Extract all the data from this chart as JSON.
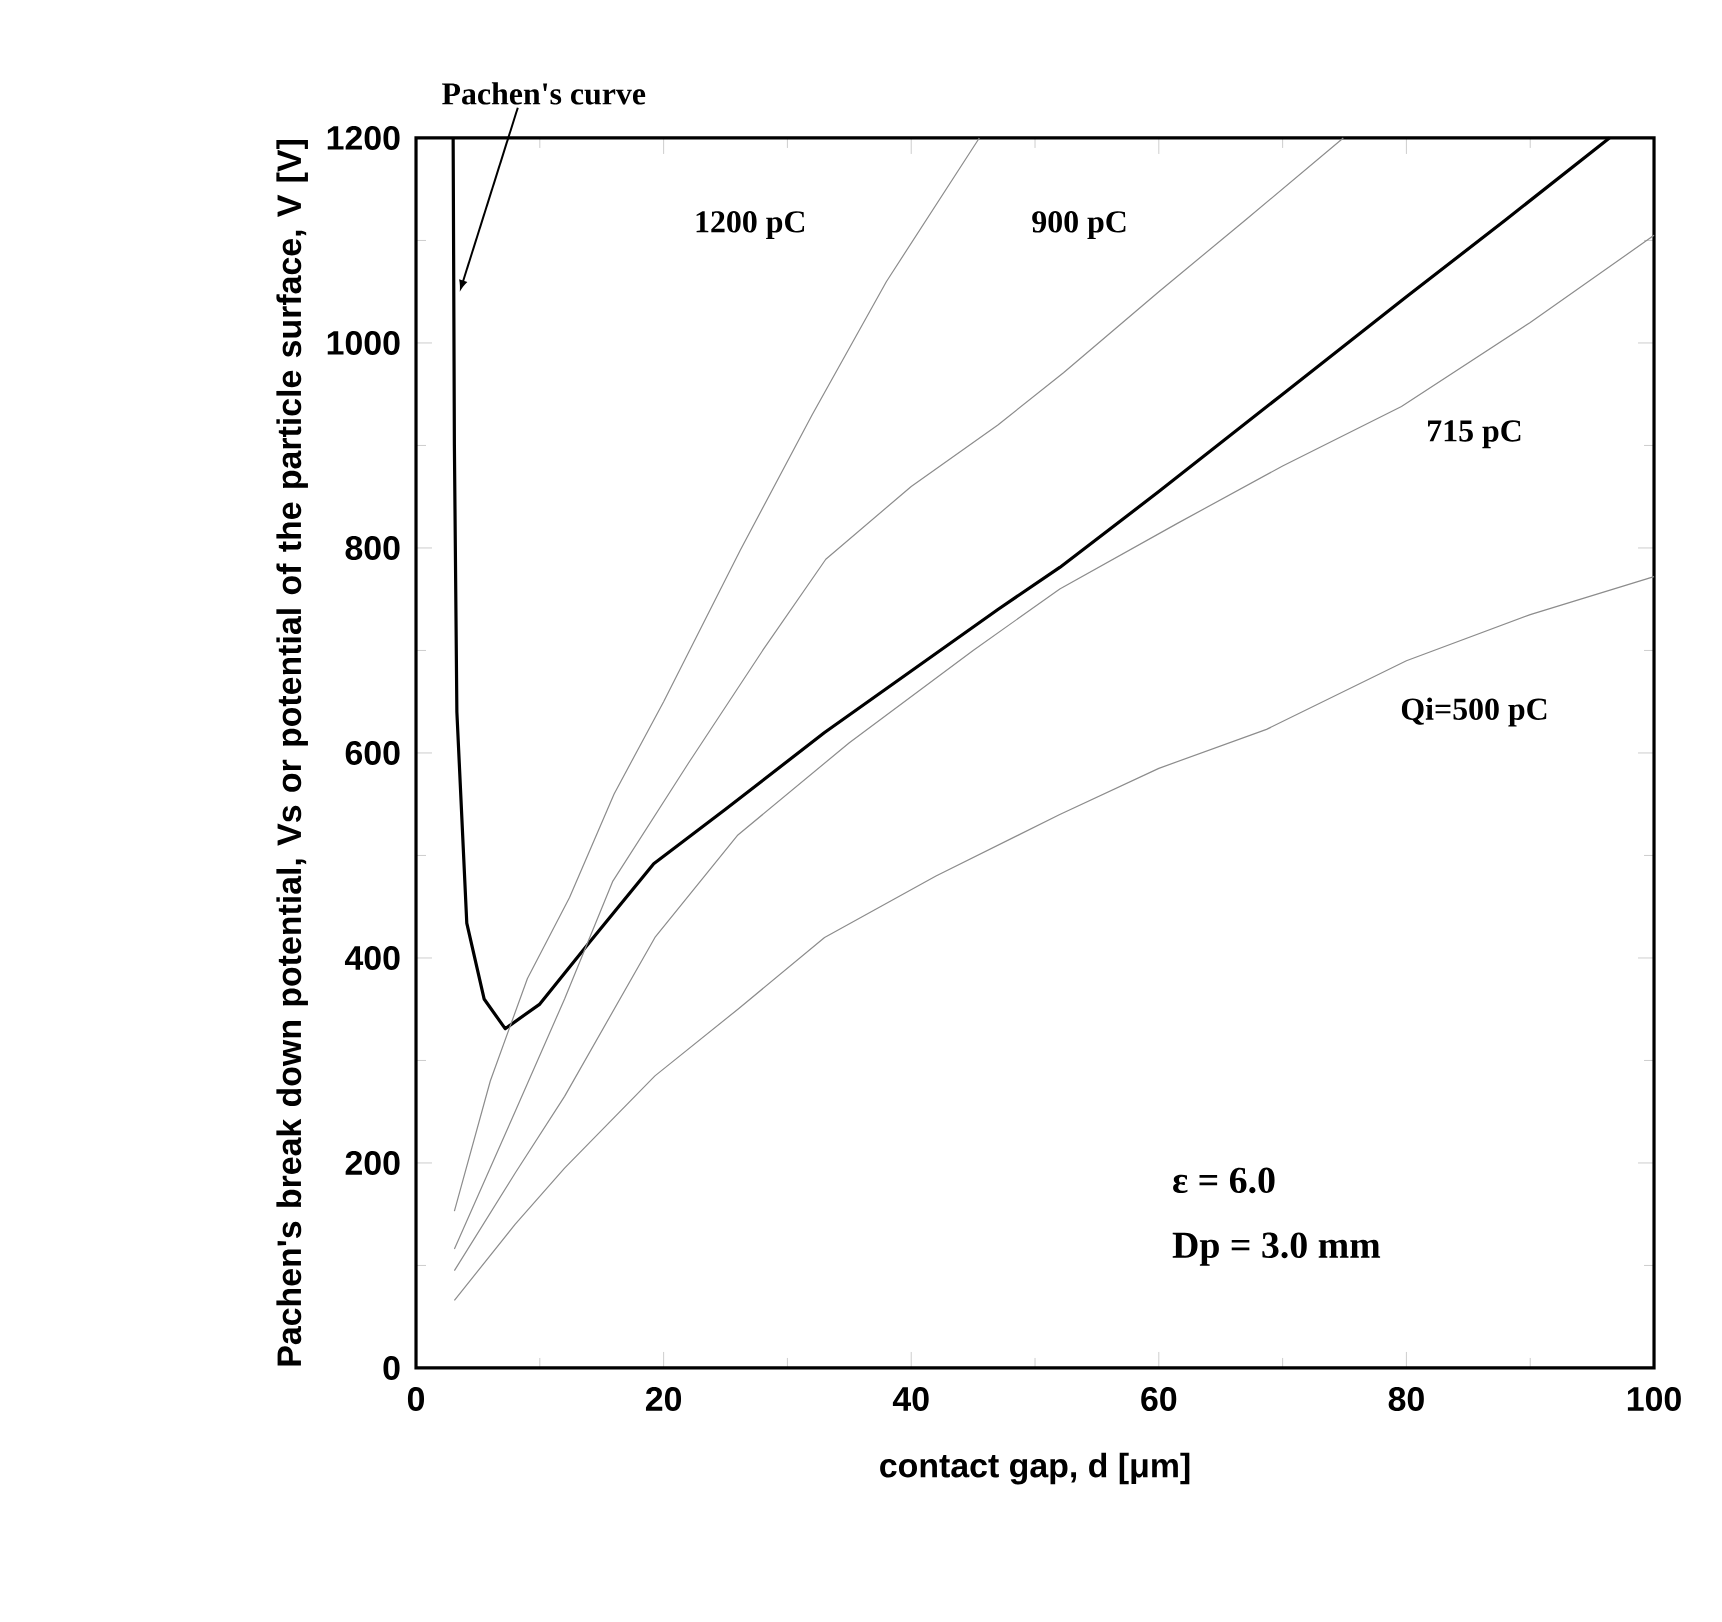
{
  "chart_data": {
    "type": "line",
    "xlabel": "contact gap, d  [μm]",
    "ylabel": "Pachen's break down potential, Vs or potential of the particle surface, V  [V]",
    "xlim": [
      0,
      100
    ],
    "ylim": [
      0,
      1200
    ],
    "xticks": [
      0,
      20,
      40,
      60,
      80,
      100
    ],
    "yticks": [
      0,
      200,
      400,
      600,
      800,
      1000,
      1200
    ],
    "grid": false,
    "marker": "none",
    "line_style": "solid",
    "annotations": [
      {
        "text": "Pachen's curve",
        "x": 3.05,
        "y": 1050
      },
      "ε  = 6.0",
      "Dp = 3.0 mm"
    ],
    "series": [
      {
        "color": "#000000",
        "x": [
          3.0,
          3.1,
          3.3,
          4.1,
          5.5,
          7.2,
          10,
          14,
          19.2,
          25,
          33,
          40,
          47,
          52,
          60,
          70,
          80,
          88,
          96.4
        ],
        "values": [
          1200,
          900,
          640,
          434,
          360,
          331,
          355,
          415,
          492,
          545,
          620,
          680,
          740,
          781,
          855,
          950,
          1045,
          1120,
          1200
        ]
      },
      {
        "name": "Qi=500 pC",
        "color": "#8c8c8c",
        "x": [
          3.1,
          8,
          12,
          19.3,
          26,
          33,
          42,
          52,
          60,
          68.7,
          80,
          90,
          100
        ],
        "values": [
          66,
          140,
          195,
          285,
          350,
          420,
          480,
          540,
          585,
          623,
          690,
          735,
          772
        ]
      },
      {
        "name": "715 pC",
        "color": "#8c8c8c",
        "x": [
          3.1,
          8,
          12,
          19.3,
          26,
          35,
          45,
          52,
          61.5,
          70,
          79.6,
          90,
          100
        ],
        "values": [
          95,
          190,
          265,
          420,
          520,
          610,
          700,
          760,
          824,
          880,
          938,
          1020,
          1105
        ]
      },
      {
        "name": "900 pC",
        "color": "#8c8c8c",
        "x": [
          3.1,
          8,
          12,
          15.9,
          22,
          28,
          33.1,
          40,
          47,
          52.3,
          60,
          67,
          74.9
        ],
        "values": [
          116,
          250,
          360,
          475,
          590,
          700,
          789,
          860,
          920,
          971,
          1050,
          1120,
          1200
        ]
      },
      {
        "name": "1200 pC",
        "color": "#8c8c8c",
        "x": [
          3.1,
          6,
          9,
          12.4,
          16,
          20,
          26.2,
          32,
          38,
          45.5
        ],
        "values": [
          153,
          280,
          380,
          459,
          560,
          650,
          798,
          930,
          1060,
          1200
        ]
      }
    ]
  }
}
